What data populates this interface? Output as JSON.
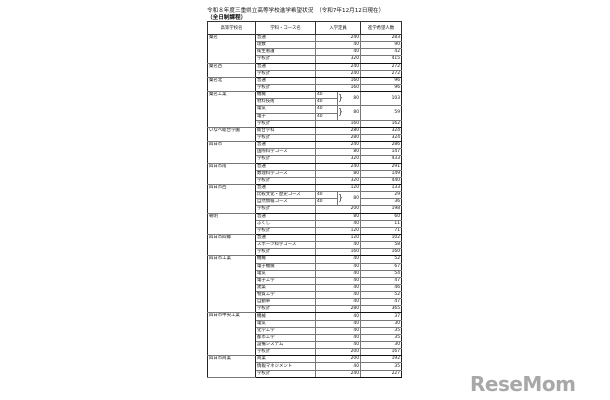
{
  "title": "令和８年度三重県立高等学校進学希望状況　（令和7年12月12日現在）",
  "subtitle": "（全日制課程）",
  "headers": [
    "高等学校名",
    "学科・コース名",
    "入学定員",
    "進学希望人数"
  ],
  "schools": [
    {
      "name": "桑名",
      "rows": [
        {
          "course": "普通",
          "capacity": "240",
          "hope": "283"
        },
        {
          "course": "理数",
          "capacity": "40",
          "hope": "90"
        },
        {
          "course": "衛生看護",
          "capacity": "40",
          "hope": "42"
        },
        {
          "course": "学校計",
          "capacity": "320",
          "hope": "415"
        }
      ]
    },
    {
      "name": "桑名西",
      "rows": [
        {
          "course": "普通",
          "capacity": "240",
          "hope": "272"
        },
        {
          "course": "学校計",
          "capacity": "240",
          "hope": "272"
        }
      ]
    },
    {
      "name": "桑名北",
      "rows": [
        {
          "course": "普通",
          "capacity": "160",
          "hope": "96"
        },
        {
          "course": "学校計",
          "capacity": "160",
          "hope": "96"
        }
      ]
    },
    {
      "name": "桑名工業",
      "rows": [
        {
          "course": "機械",
          "sub_capacity": "40",
          "group_capacity": "80",
          "group_hope": "103"
        },
        {
          "course": "材料技術",
          "sub_capacity": "40"
        },
        {
          "course": "電気",
          "sub_capacity": "40",
          "group_capacity": "80",
          "group_hope": "59"
        },
        {
          "course": "電子",
          "sub_capacity": "40"
        },
        {
          "course": "学校計",
          "capacity": "160",
          "hope": "162"
        }
      ]
    },
    {
      "name": "いなべ総合学園",
      "rows": [
        {
          "course": "総合学科",
          "capacity": "280",
          "hope": "324"
        },
        {
          "course": "学校計",
          "capacity": "280",
          "hope": "324"
        }
      ]
    },
    {
      "name": "四日市",
      "rows": [
        {
          "course": "普通",
          "capacity": "240",
          "hope": "286"
        },
        {
          "course": "国際科学コース",
          "capacity": "80",
          "hope": "147"
        },
        {
          "course": "学校計",
          "capacity": "320",
          "hope": "433"
        }
      ]
    },
    {
      "name": "四日市南",
      "rows": [
        {
          "course": "普通",
          "capacity": "240",
          "hope": "291"
        },
        {
          "course": "数理科学コース",
          "capacity": "80",
          "hope": "149"
        },
        {
          "course": "学校計",
          "capacity": "320",
          "hope": "440"
        }
      ]
    },
    {
      "name": "四日市西",
      "rows": [
        {
          "course": "普通",
          "capacity": "120",
          "hope": "133"
        },
        {
          "course": "比較文化・歴史コース",
          "sub_capacity": "40",
          "group_capacity": "80",
          "hope": "29"
        },
        {
          "course": "自然情報コース",
          "sub_capacity": "40",
          "hope": "36"
        },
        {
          "course": "学校計",
          "capacity": "200",
          "hope": "198"
        }
      ]
    },
    {
      "name": "朝明",
      "rows": [
        {
          "course": "普通",
          "capacity": "80",
          "hope": "60"
        },
        {
          "course": "ふくし",
          "capacity": "40",
          "hope": "11"
        },
        {
          "course": "学校計",
          "capacity": "120",
          "hope": "71"
        }
      ]
    },
    {
      "name": "四日市四郷",
      "rows": [
        {
          "course": "普通",
          "capacity": "120",
          "hope": "102"
        },
        {
          "course": "スポーツ科学コース",
          "capacity": "40",
          "hope": "58"
        },
        {
          "course": "学校計",
          "capacity": "160",
          "hope": "160"
        }
      ]
    },
    {
      "name": "四日市工業",
      "rows": [
        {
          "course": "機械",
          "capacity": "40",
          "hope": "52"
        },
        {
          "course": "電子機械",
          "capacity": "40",
          "hope": "67"
        },
        {
          "course": "電気",
          "capacity": "40",
          "hope": "54"
        },
        {
          "course": "電子工学",
          "capacity": "40",
          "hope": "47"
        },
        {
          "course": "建築",
          "capacity": "40",
          "hope": "46"
        },
        {
          "course": "物質工学",
          "capacity": "40",
          "hope": "52"
        },
        {
          "course": "自動車",
          "capacity": "40",
          "hope": "47"
        },
        {
          "course": "学校計",
          "capacity": "280",
          "hope": "365"
        }
      ]
    },
    {
      "name": "四日市中央工業",
      "rows": [
        {
          "course": "機械",
          "capacity": "40",
          "hope": "37"
        },
        {
          "course": "電気",
          "capacity": "40",
          "hope": "30"
        },
        {
          "course": "化学工学",
          "capacity": "40",
          "hope": "35"
        },
        {
          "course": "都市工学",
          "capacity": "40",
          "hope": "35"
        },
        {
          "course": "設備システム",
          "capacity": "40",
          "hope": "30"
        },
        {
          "course": "学校計",
          "capacity": "200",
          "hope": "167"
        }
      ]
    },
    {
      "name": "四日市商業",
      "rows": [
        {
          "course": "商業",
          "capacity": "200",
          "hope": "192"
        },
        {
          "course": "情報マネジメント",
          "capacity": "40",
          "hope": "35"
        },
        {
          "course": "学校計",
          "capacity": "240",
          "hope": "227"
        }
      ]
    }
  ],
  "watermark": "ReseMom"
}
